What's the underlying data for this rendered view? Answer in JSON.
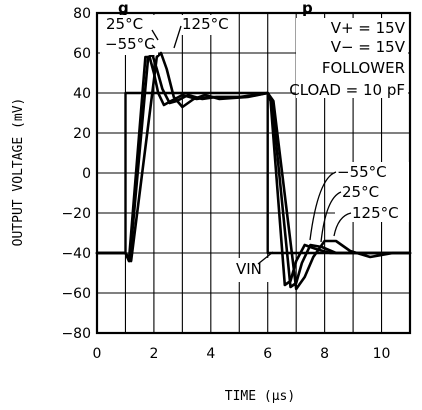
{
  "chart_data": {
    "type": "line",
    "title_fragment": "g",
    "title_fragment_right": "p",
    "xlabel": "TIME (µs)",
    "ylabel": "OUTPUT VOLTAGE (mV)",
    "xlim": [
      0,
      11
    ],
    "ylim": [
      -80,
      80
    ],
    "xticks": [
      0,
      2,
      4,
      6,
      8,
      10
    ],
    "yticks": [
      -80,
      -60,
      -40,
      -20,
      0,
      20,
      40,
      60,
      80
    ],
    "grid": true,
    "conditions": [
      "V+ = 15V",
      "V− = 15V",
      "FOLLOWER",
      "CLOAD = 10 pF"
    ],
    "annotations": {
      "rise_labels": [
        "25°C",
        "−55°C",
        "125°C"
      ],
      "fall_labels": [
        "−55°C",
        "25°C",
        "125°C"
      ],
      "vin_label": "VIN"
    },
    "series": [
      {
        "name": "VIN",
        "x": [
          0,
          1.0,
          1.0,
          6.0,
          6.0,
          11
        ],
        "y": [
          -40,
          -40,
          40,
          40,
          -40,
          -40
        ]
      },
      {
        "name": "−55°C",
        "x": [
          0,
          1.0,
          1.12,
          1.7,
          1.85,
          2.0,
          2.15,
          2.35,
          2.6,
          3.0,
          3.5,
          4.0,
          5.0,
          6.0,
          6.1,
          6.6,
          6.8,
          7.0,
          7.3,
          7.7,
          8.2,
          9.0,
          10.0,
          11
        ],
        "y": [
          -40,
          -40,
          -44,
          58,
          58,
          50,
          40,
          34,
          36,
          39,
          37,
          38,
          38,
          40,
          36,
          -56,
          -54,
          -44,
          -36,
          -38,
          -40,
          -40,
          -40,
          -40
        ]
      },
      {
        "name": "25°C",
        "x": [
          0,
          1.0,
          1.15,
          1.8,
          1.95,
          2.1,
          2.3,
          2.55,
          2.8,
          3.2,
          3.7,
          4.2,
          5.2,
          6.0,
          6.15,
          6.8,
          7.0,
          7.2,
          7.5,
          7.9,
          8.4,
          9.2,
          10.2,
          11
        ],
        "y": [
          -40,
          -40,
          -44,
          58,
          59,
          52,
          42,
          35,
          36,
          39,
          37,
          38,
          38,
          40,
          36,
          -57,
          -55,
          -45,
          -36,
          -37,
          -40,
          -40,
          -40,
          -40
        ]
      },
      {
        "name": "125°C",
        "x": [
          0,
          1.0,
          1.2,
          2.1,
          2.25,
          2.45,
          2.7,
          3.0,
          3.4,
          3.8,
          4.3,
          5.3,
          6.0,
          6.2,
          7.0,
          7.3,
          7.6,
          8.0,
          8.4,
          8.9,
          9.6,
          10.4,
          11
        ],
        "y": [
          -40,
          -40,
          -44,
          58,
          60,
          52,
          38,
          33,
          37,
          39,
          37,
          38,
          40,
          36,
          -58,
          -52,
          -42,
          -34,
          -34,
          -39,
          -42,
          -40,
          -40
        ]
      }
    ]
  }
}
